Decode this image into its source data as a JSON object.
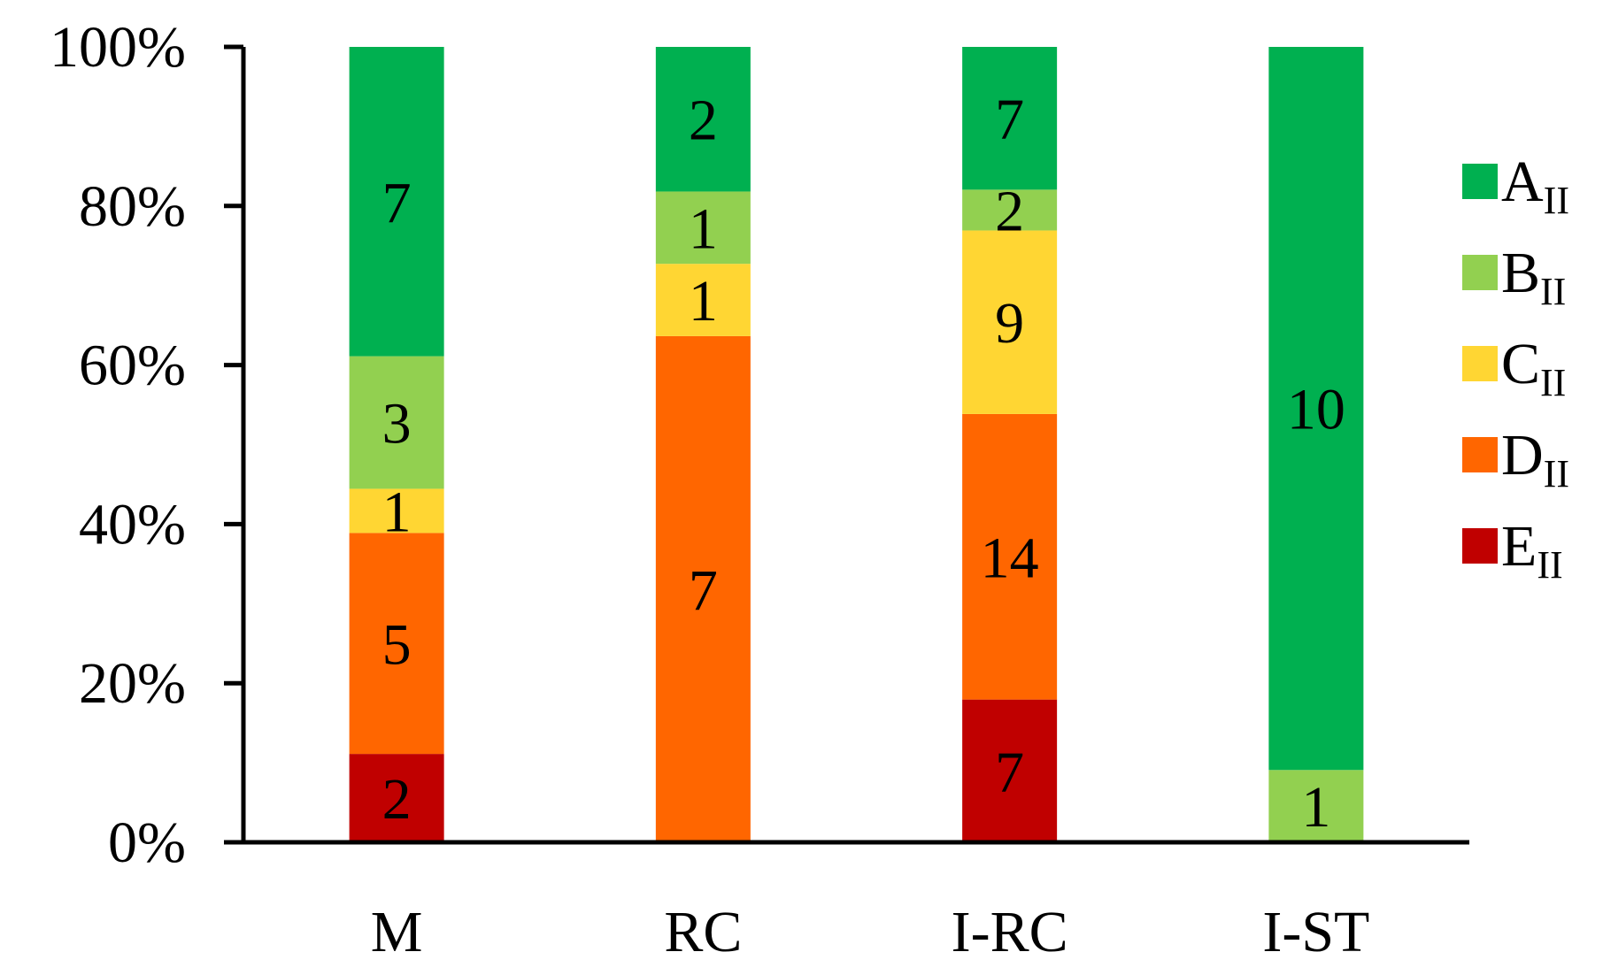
{
  "chart_data": {
    "type": "bar",
    "stacked": true,
    "normalized": true,
    "categories": [
      "M",
      "RC",
      "I-RC",
      "I-ST"
    ],
    "series": [
      {
        "name": "E",
        "subscript": "II",
        "color": "#c00000",
        "values": [
          2,
          0,
          7,
          0
        ]
      },
      {
        "name": "D",
        "subscript": "II",
        "color": "#ff6600",
        "values": [
          5,
          7,
          14,
          0
        ]
      },
      {
        "name": "C",
        "subscript": "II",
        "color": "#ffd633",
        "values": [
          1,
          1,
          9,
          0
        ]
      },
      {
        "name": "B",
        "subscript": "II",
        "color": "#92d050",
        "values": [
          3,
          1,
          2,
          1
        ]
      },
      {
        "name": "A",
        "subscript": "II",
        "color": "#00b050",
        "values": [
          7,
          2,
          7,
          10
        ]
      }
    ],
    "legend_order": [
      "A",
      "B",
      "C",
      "D",
      "E"
    ],
    "y_ticks": [
      "0%",
      "20%",
      "40%",
      "60%",
      "80%",
      "100%"
    ],
    "ylim": [
      0,
      100
    ],
    "legend_position": "right",
    "grid": false
  }
}
